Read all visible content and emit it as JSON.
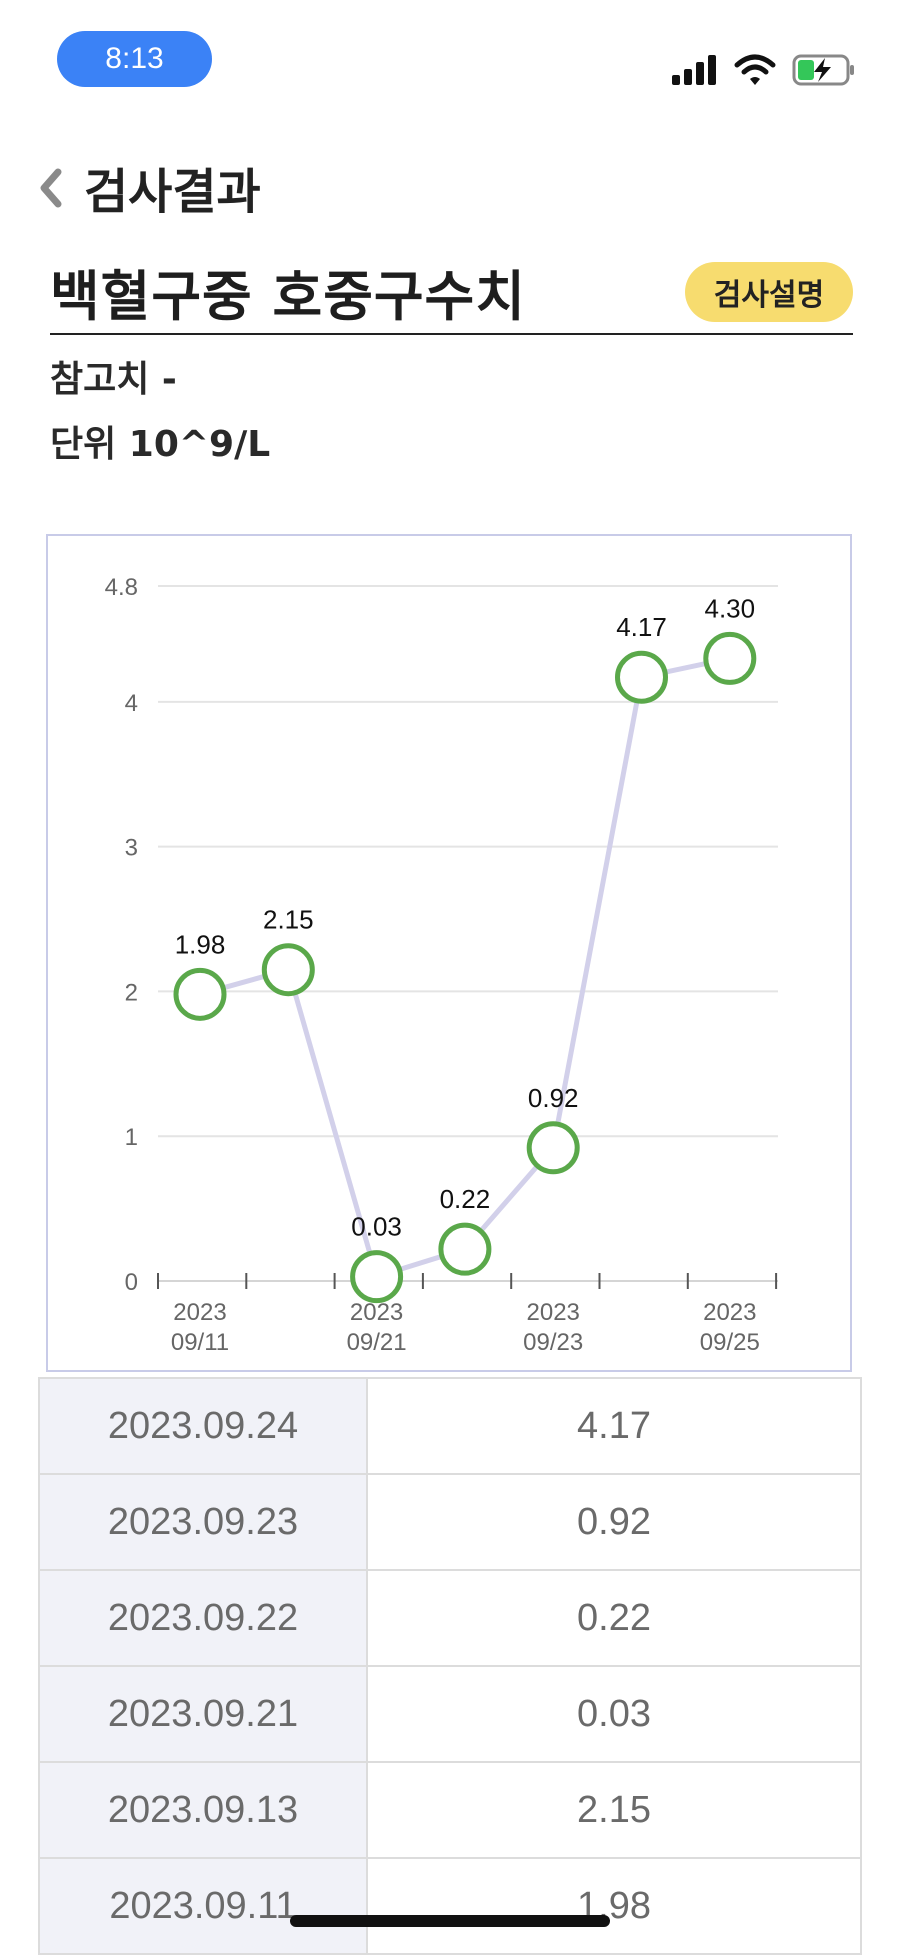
{
  "status_bar": {
    "time": "8:13"
  },
  "header": {
    "title": "검사결과"
  },
  "test": {
    "name": "백혈구중 호중구수치",
    "explain_button": "검사설명",
    "reference": "참고치 -",
    "unit": "단위 10^9/L"
  },
  "colors": {
    "marker": "#5aa84a",
    "line": "#d2d0ea",
    "button": "#f7dc6f",
    "time_pill": "#3b82f6"
  },
  "chart_data": {
    "type": "line",
    "x": [
      "2023.09.11",
      "2023.09.13",
      "2023.09.21",
      "2023.09.22",
      "2023.09.23",
      "2023.09.24",
      "2023.09.25"
    ],
    "values": [
      1.98,
      2.15,
      0.03,
      0.22,
      0.92,
      4.17,
      4.3
    ],
    "value_labels": [
      "1.98",
      "2.15",
      "0.03",
      "0.22",
      "0.92",
      "4.17",
      "4.30"
    ],
    "y_ticks": [
      "0",
      "1",
      "2",
      "3",
      "4",
      "4.8"
    ],
    "x_tick_labels": [
      {
        "year": "2023",
        "date": "09/11"
      },
      {
        "year": "2023",
        "date": "09/21"
      },
      {
        "year": "2023",
        "date": "09/23"
      },
      {
        "year": "2023",
        "date": "09/25"
      }
    ],
    "ylim": [
      0,
      4.8
    ],
    "grid": true
  },
  "table": {
    "rows": [
      {
        "date": "2023.09.24",
        "value": "4.17"
      },
      {
        "date": "2023.09.23",
        "value": "0.92"
      },
      {
        "date": "2023.09.22",
        "value": "0.22"
      },
      {
        "date": "2023.09.21",
        "value": "0.03"
      },
      {
        "date": "2023.09.13",
        "value": "2.15"
      },
      {
        "date": "2023.09.11",
        "value": "1.98"
      }
    ]
  }
}
